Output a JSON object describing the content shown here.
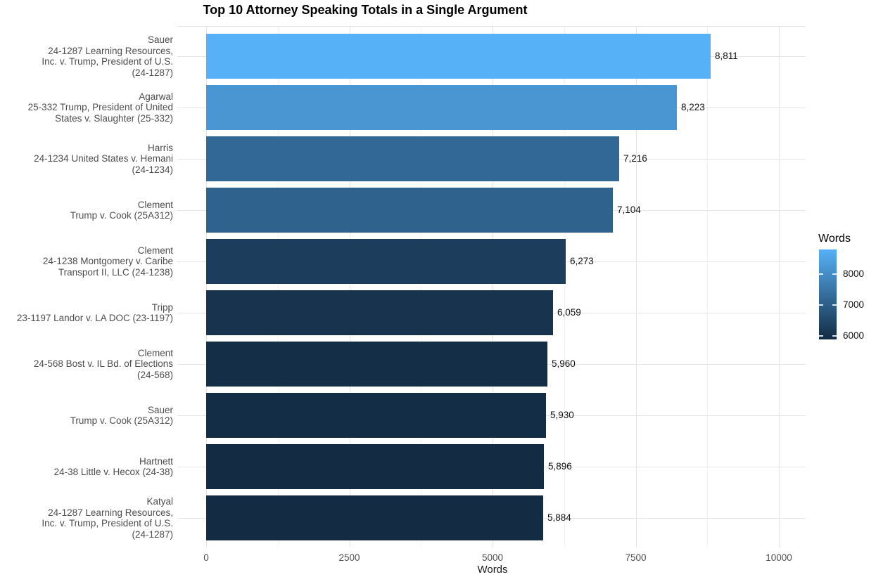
{
  "chart_data": {
    "type": "bar",
    "orientation": "horizontal",
    "title": "Top 10 Attorney Speaking Totals in a Single Argument",
    "xlabel": "Words",
    "xlim": [
      0,
      10000
    ],
    "x_tick_values": [
      0,
      2500,
      5000,
      7500,
      10000
    ],
    "x_tick_labels": [
      "0",
      "2500",
      "5000",
      "7500",
      "10000"
    ],
    "x_minor_tick_values": [
      1250,
      3750,
      6250,
      8750
    ],
    "grid": true,
    "legend": {
      "title": "Words",
      "position": "right",
      "type": "colorbar",
      "tick_values": [
        8000,
        7000,
        6000
      ],
      "tick_labels": [
        "8000",
        "7000",
        "6000"
      ],
      "domain": [
        5884,
        8811
      ],
      "low_color": "#132B43",
      "high_color": "#56B1F7"
    },
    "bars": [
      {
        "label_lines": [
          "Sauer",
          "24-1287 Learning Resources,",
          "Inc. v. Trump, President of U.S.",
          "(24-1287)"
        ],
        "value": 8811,
        "value_label": "8,811"
      },
      {
        "label_lines": [
          "Agarwal",
          "25-332 Trump, President of United",
          "States v. Slaughter (25-332)"
        ],
        "value": 8223,
        "value_label": "8,223"
      },
      {
        "label_lines": [
          "Harris",
          "24-1234 United States v. Hemani",
          "(24-1234)"
        ],
        "value": 7216,
        "value_label": "7,216"
      },
      {
        "label_lines": [
          "Clement",
          "Trump v. Cook (25A312)"
        ],
        "value": 7104,
        "value_label": "7,104"
      },
      {
        "label_lines": [
          "Clement",
          "24-1238 Montgomery v. Caribe",
          "Transport II, LLC (24-1238)"
        ],
        "value": 6273,
        "value_label": "6,273"
      },
      {
        "label_lines": [
          "Tripp",
          "23-1197 Landor v. LA DOC (23-1197)"
        ],
        "value": 6059,
        "value_label": "6,059"
      },
      {
        "label_lines": [
          "Clement",
          "24-568 Bost v. IL Bd. of Elections",
          "(24-568)"
        ],
        "value": 5960,
        "value_label": "5,960"
      },
      {
        "label_lines": [
          "Sauer",
          "Trump v. Cook (25A312)"
        ],
        "value": 5930,
        "value_label": "5,930"
      },
      {
        "label_lines": [
          "Hartnett",
          "24-38 Little v. Hecox (24-38)"
        ],
        "value": 5896,
        "value_label": "5,896"
      },
      {
        "label_lines": [
          "Katyal",
          "24-1287 Learning Resources,",
          "Inc. v. Trump, President of U.S.",
          "(24-1287)"
        ],
        "value": 5884,
        "value_label": "5,884"
      }
    ]
  }
}
